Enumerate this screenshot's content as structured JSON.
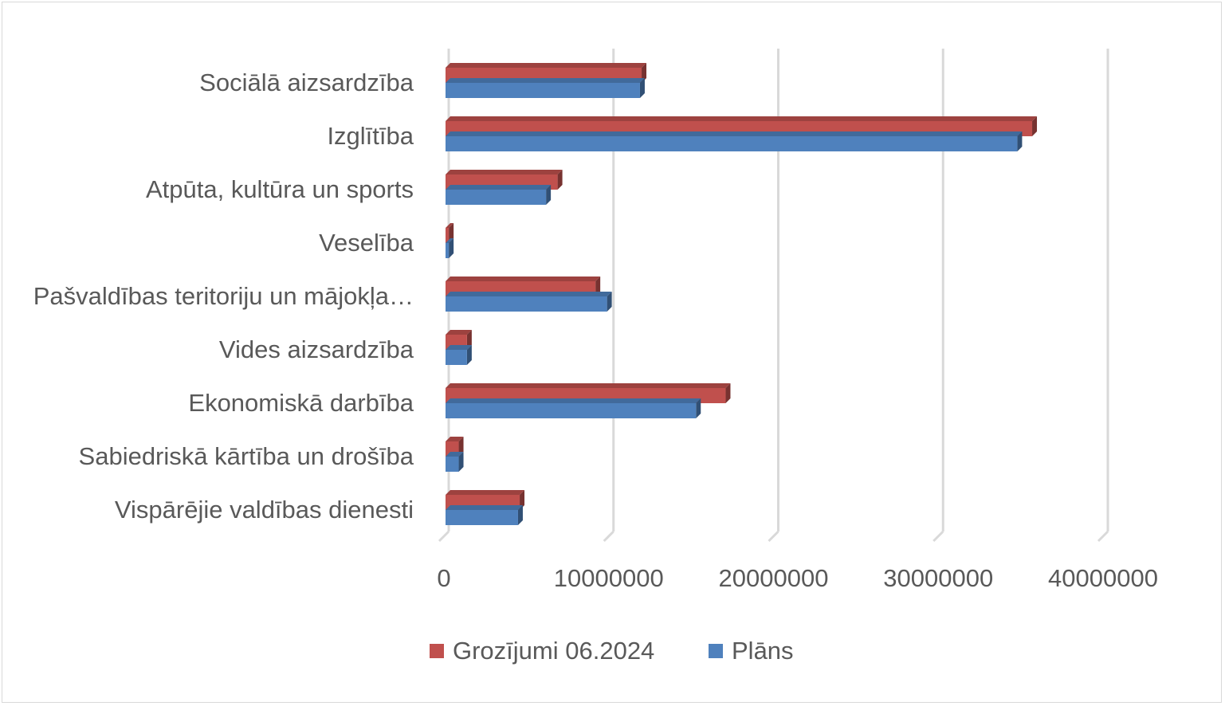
{
  "chart_data": {
    "type": "bar",
    "orientation": "horizontal",
    "style": "3d-clustered",
    "categories": [
      "Sociālā aizsardzība",
      "Izglītība",
      "Atpūta, kultūra un sports",
      "Veselība",
      "Pašvaldības teritoriju un mājokļa…",
      "Vides aizsardzība",
      "Ekonomiskā darbība",
      "Sabiedriskā kārtība un drošība",
      "Vispārējie valdības dienesti"
    ],
    "series": [
      {
        "name": "Grozījumi 06.2024",
        "color": "#c0504d",
        "values": [
          11900000,
          35600000,
          6800000,
          200000,
          9100000,
          1300000,
          17000000,
          800000,
          4500000
        ]
      },
      {
        "name": "Plāns",
        "color": "#4f81bd",
        "values": [
          11800000,
          34700000,
          6100000,
          200000,
          9800000,
          1300000,
          15200000,
          800000,
          4400000
        ]
      }
    ],
    "xlim": [
      0,
      40000000
    ],
    "xticks": [
      "0",
      "10000000",
      "20000000",
      "30000000",
      "40000000"
    ],
    "grid": true,
    "legend_position": "bottom"
  }
}
